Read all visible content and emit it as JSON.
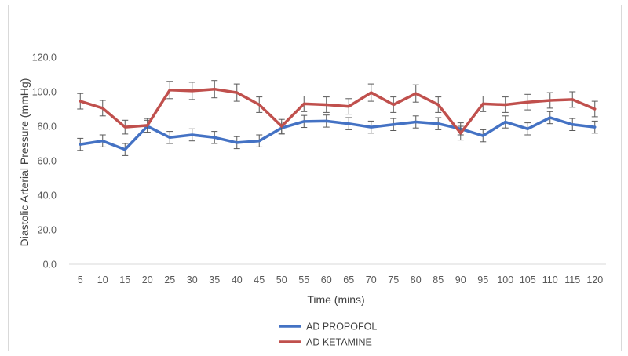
{
  "chart_data": {
    "type": "line",
    "title": "",
    "xlabel": "Time (mins)",
    "ylabel": "Diastolic Arterial Pressure (mmHg)",
    "ylim": [
      0,
      120
    ],
    "yticks": [
      "0.0",
      "20.0",
      "40.0",
      "60.0",
      "80.0",
      "100.0",
      "120.0"
    ],
    "categories": [
      "5",
      "10",
      "15",
      "20",
      "25",
      "30",
      "35",
      "40",
      "45",
      "50",
      "55",
      "60",
      "65",
      "70",
      "75",
      "80",
      "85",
      "90",
      "95",
      "100",
      "105",
      "110",
      "115",
      "120"
    ],
    "grid": false,
    "legend_position": "bottom",
    "error_bars": true,
    "series": [
      {
        "name": "AD PROPOFOL",
        "color": "#4472c4",
        "values": [
          69.5,
          71.5,
          66.5,
          80.0,
          73.5,
          75.0,
          73.5,
          70.5,
          71.5,
          79.0,
          82.8,
          83.0,
          81.5,
          79.5,
          81.0,
          82.5,
          81.5,
          78.5,
          74.5,
          82.5,
          78.5,
          85.0,
          81.0,
          79.5
        ],
        "errors": [
          3.5,
          3.5,
          3.5,
          3.5,
          3.5,
          3.5,
          3.5,
          3.5,
          3.5,
          3.5,
          3.5,
          3.5,
          3.5,
          3.5,
          3.5,
          3.5,
          3.5,
          3.5,
          3.5,
          3.5,
          3.5,
          3.5,
          3.5,
          3.5
        ]
      },
      {
        "name": "AD KETAMINE",
        "color": "#c0504d",
        "values": [
          94.5,
          90.5,
          79.5,
          80.5,
          101.0,
          100.5,
          101.5,
          99.5,
          92.5,
          80.0,
          93.0,
          92.5,
          91.5,
          99.5,
          92.5,
          99.0,
          92.5,
          76.0,
          93.0,
          92.5,
          94.0,
          95.0,
          95.5,
          90.0
        ],
        "errors": [
          4.5,
          4.5,
          4.0,
          4.0,
          5.0,
          5.0,
          5.0,
          5.0,
          4.5,
          4.0,
          4.5,
          4.5,
          4.5,
          5.0,
          4.5,
          5.0,
          4.5,
          4.0,
          4.5,
          4.5,
          4.5,
          4.5,
          4.5,
          4.5
        ]
      }
    ]
  }
}
